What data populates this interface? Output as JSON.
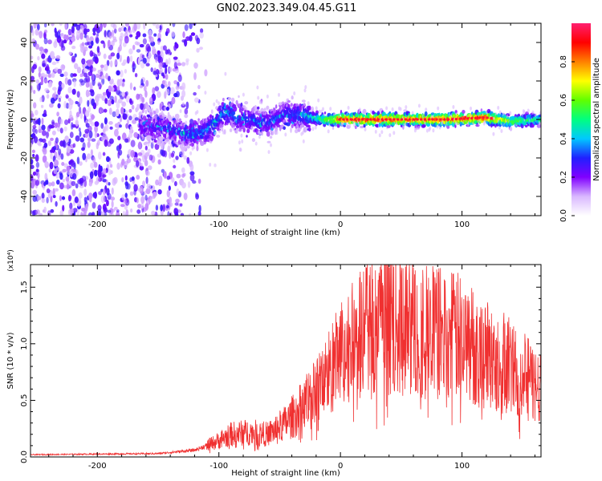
{
  "chart_data": [
    {
      "type": "heatmap",
      "title": "GN02.2023.349.04.45.G11",
      "xlabel": "Height of straight line (km)",
      "ylabel": "Frequency (Hz)",
      "xlim": [
        -255,
        165
      ],
      "ylim": [
        -50,
        50
      ],
      "xticks": [
        -200,
        -100,
        0,
        100
      ],
      "yticks": [
        -40,
        -20,
        0,
        20,
        40
      ],
      "colorbar": {
        "label": "Normalized spectral amplitude",
        "range": [
          0,
          1
        ],
        "ticks": [
          "0.0",
          "0.2",
          "0.4",
          "0.6",
          "0.8"
        ],
        "colors": [
          "#ffffff",
          "#d9b8ff",
          "#8000ff",
          "#2020ff",
          "#00c8ff",
          "#00ff80",
          "#60ff00",
          "#ffff00",
          "#ff8000",
          "#ff0000",
          "#ff2070"
        ]
      },
      "ridge": [
        {
          "x": -150,
          "y": -4,
          "amp": 0.25
        },
        {
          "x": -125,
          "y": -8,
          "amp": 0.3
        },
        {
          "x": -110,
          "y": -6,
          "amp": 0.35
        },
        {
          "x": -95,
          "y": 4,
          "amp": 0.35
        },
        {
          "x": -80,
          "y": 0,
          "amp": 0.3
        },
        {
          "x": -60,
          "y": -2,
          "amp": 0.3
        },
        {
          "x": -45,
          "y": 3,
          "amp": 0.3
        },
        {
          "x": -30,
          "y": 2,
          "amp": 0.35
        },
        {
          "x": -15,
          "y": 0,
          "amp": 0.55
        },
        {
          "x": 0,
          "y": 0,
          "amp": 0.85
        },
        {
          "x": 30,
          "y": 0,
          "amp": 0.9
        },
        {
          "x": 60,
          "y": 0,
          "amp": 0.85
        },
        {
          "x": 90,
          "y": 0,
          "amp": 0.9
        },
        {
          "x": 120,
          "y": 1,
          "amp": 0.9
        },
        {
          "x": 140,
          "y": -1,
          "amp": 0.6
        },
        {
          "x": 165,
          "y": 0,
          "amp": 0.5
        }
      ]
    },
    {
      "type": "line",
      "xlabel": "Height of straight line (km)",
      "ylabel": "SNR (10 * v/v)",
      "yscale_label": "(x10⁴)",
      "xlim": [
        -255,
        165
      ],
      "ylim": [
        0,
        1.7
      ],
      "xticks": [
        -200,
        -100,
        0,
        100
      ],
      "yticks": [
        "0.0",
        "0.5",
        "1.0",
        "1.5"
      ],
      "color": "#f03030",
      "envelope": [
        {
          "x": -255,
          "y": 0.02
        },
        {
          "x": -150,
          "y": 0.03
        },
        {
          "x": -120,
          "y": 0.06
        },
        {
          "x": -105,
          "y": 0.12
        },
        {
          "x": -90,
          "y": 0.2
        },
        {
          "x": -75,
          "y": 0.22
        },
        {
          "x": -60,
          "y": 0.2
        },
        {
          "x": -45,
          "y": 0.3
        },
        {
          "x": -30,
          "y": 0.45
        },
        {
          "x": -15,
          "y": 0.65
        },
        {
          "x": 0,
          "y": 0.9
        },
        {
          "x": 20,
          "y": 1.1
        },
        {
          "x": 40,
          "y": 1.2
        },
        {
          "x": 60,
          "y": 1.15
        },
        {
          "x": 80,
          "y": 1.1
        },
        {
          "x": 100,
          "y": 1.05
        },
        {
          "x": 120,
          "y": 0.9
        },
        {
          "x": 140,
          "y": 0.8
        },
        {
          "x": 165,
          "y": 0.6
        }
      ]
    }
  ]
}
